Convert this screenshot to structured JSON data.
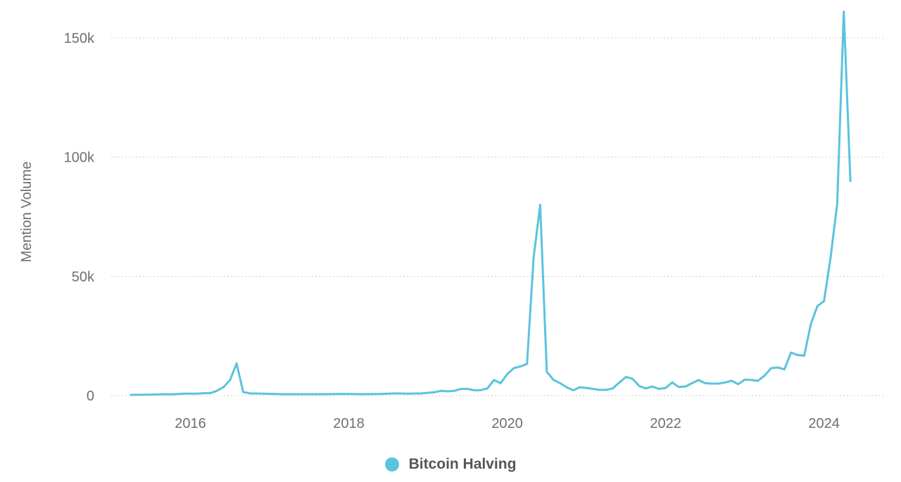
{
  "chart_data": {
    "type": "line",
    "ylabel": "Mention Volume",
    "xlabel": "",
    "xlim": [
      "2015-01",
      "2024-10"
    ],
    "ylim": [
      0,
      160000
    ],
    "grid": true,
    "legend_position": "bottom-center",
    "x_ticks": [
      {
        "value": "2016-01",
        "label": "2016"
      },
      {
        "value": "2018-01",
        "label": "2018"
      },
      {
        "value": "2020-01",
        "label": "2020"
      },
      {
        "value": "2022-01",
        "label": "2022"
      },
      {
        "value": "2024-01",
        "label": "2024"
      }
    ],
    "y_ticks": [
      {
        "value": 0,
        "label": "0"
      },
      {
        "value": 50000,
        "label": "50k"
      },
      {
        "value": 100000,
        "label": "100k"
      },
      {
        "value": 150000,
        "label": "150k"
      }
    ],
    "series": [
      {
        "name": "Bitcoin Halving",
        "color": "#5bc3dd",
        "points": [
          [
            "2015-04",
            300
          ],
          [
            "2015-07",
            400
          ],
          [
            "2015-09",
            600
          ],
          [
            "2015-10",
            500
          ],
          [
            "2015-12",
            800
          ],
          [
            "2016-02",
            800
          ],
          [
            "2016-03",
            1000
          ],
          [
            "2016-04",
            1000
          ],
          [
            "2016-05",
            2000
          ],
          [
            "2016-06",
            3500
          ],
          [
            "2016-07",
            6500
          ],
          [
            "2016-08",
            13500
          ],
          [
            "2016-09",
            1500
          ],
          [
            "2016-10",
            900
          ],
          [
            "2016-12",
            800
          ],
          [
            "2017-03",
            600
          ],
          [
            "2017-06",
            600
          ],
          [
            "2017-09",
            600
          ],
          [
            "2017-12",
            700
          ],
          [
            "2018-03",
            600
          ],
          [
            "2018-06",
            700
          ],
          [
            "2018-08",
            900
          ],
          [
            "2018-10",
            800
          ],
          [
            "2018-12",
            900
          ],
          [
            "2019-02",
            1400
          ],
          [
            "2019-03",
            2000
          ],
          [
            "2019-04",
            1800
          ],
          [
            "2019-05",
            2000
          ],
          [
            "2019-06",
            2800
          ],
          [
            "2019-07",
            2800
          ],
          [
            "2019-08",
            2200
          ],
          [
            "2019-09",
            2300
          ],
          [
            "2019-10",
            3000
          ],
          [
            "2019-11",
            6500
          ],
          [
            "2019-12",
            5200
          ],
          [
            "2020-01",
            9000
          ],
          [
            "2020-02",
            11500
          ],
          [
            "2020-03",
            12200
          ],
          [
            "2020-04",
            13300
          ],
          [
            "2020-05",
            58000
          ],
          [
            "2020-06",
            80000
          ],
          [
            "2020-07",
            10000
          ],
          [
            "2020-08",
            6600
          ],
          [
            "2020-09",
            5200
          ],
          [
            "2020-10",
            3500
          ],
          [
            "2020-11",
            2200
          ],
          [
            "2020-12",
            3500
          ],
          [
            "2021-01",
            3200
          ],
          [
            "2021-02",
            2800
          ],
          [
            "2021-03",
            2400
          ],
          [
            "2021-04",
            2400
          ],
          [
            "2021-05",
            3000
          ],
          [
            "2021-06",
            5500
          ],
          [
            "2021-07",
            7800
          ],
          [
            "2021-08",
            7000
          ],
          [
            "2021-09",
            4000
          ],
          [
            "2021-10",
            3000
          ],
          [
            "2021-11",
            3800
          ],
          [
            "2021-12",
            2800
          ],
          [
            "2022-01",
            3200
          ],
          [
            "2022-02",
            5500
          ],
          [
            "2022-03",
            3600
          ],
          [
            "2022-04",
            3800
          ],
          [
            "2022-05",
            5200
          ],
          [
            "2022-06",
            6500
          ],
          [
            "2022-07",
            5200
          ],
          [
            "2022-08",
            5000
          ],
          [
            "2022-09",
            5000
          ],
          [
            "2022-10",
            5500
          ],
          [
            "2022-11",
            6200
          ],
          [
            "2022-12",
            4800
          ],
          [
            "2023-01",
            6700
          ],
          [
            "2023-02",
            6500
          ],
          [
            "2023-03",
            6200
          ],
          [
            "2023-04",
            8400
          ],
          [
            "2023-05",
            11500
          ],
          [
            "2023-06",
            11800
          ],
          [
            "2023-07",
            11000
          ],
          [
            "2023-08",
            18000
          ],
          [
            "2023-09",
            17000
          ],
          [
            "2023-10",
            16700
          ],
          [
            "2023-11",
            30000
          ],
          [
            "2023-12",
            37500
          ],
          [
            "2024-01",
            39600
          ],
          [
            "2024-02",
            58000
          ],
          [
            "2024-03",
            80500
          ],
          [
            "2024-04",
            161000
          ],
          [
            "2024-05",
            90000
          ]
        ]
      }
    ]
  },
  "legend": {
    "label": "Bitcoin Halving",
    "color": "#5bc3dd"
  }
}
